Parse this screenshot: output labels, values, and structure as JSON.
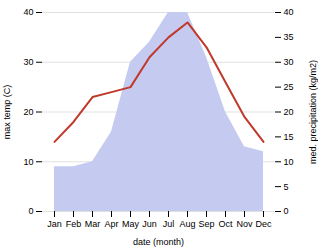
{
  "chart_data": {
    "type": "line",
    "categories": [
      "Jan",
      "Feb",
      "Mar",
      "Apr",
      "May",
      "Jun",
      "Jul",
      "Aug",
      "Sep",
      "Oct",
      "Nov",
      "Dec"
    ],
    "xlabel": "date (month)",
    "ylabel": "max temp (C)",
    "y2label": "med. precipitation (kg/m2)",
    "ylim": [
      0,
      40
    ],
    "yticks": [
      0,
      10,
      20,
      30,
      40
    ],
    "y2lim": [
      0,
      40
    ],
    "y2ticks": [
      0,
      5,
      10,
      15,
      20,
      25,
      30,
      35,
      40
    ],
    "grid": true,
    "series": [
      {
        "type": "line",
        "color": "#c0392b",
        "values": [
          14,
          18,
          23,
          24,
          25,
          31,
          35,
          38,
          33,
          26,
          19,
          14
        ]
      },
      {
        "type": "area",
        "axis": "y2",
        "color": "#c5caf0",
        "values": [
          9,
          9,
          10,
          16,
          30,
          34,
          40,
          40,
          31,
          20,
          13,
          12
        ]
      }
    ]
  }
}
